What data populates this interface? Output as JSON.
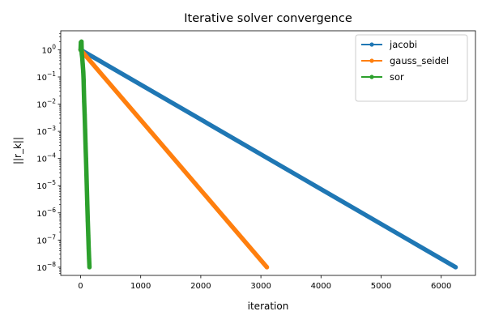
{
  "chart_data": {
    "type": "line",
    "title": "Iterative solver convergence",
    "xlabel": "iteration",
    "ylabel": "||r_k||",
    "yscale": "log",
    "xlim": [
      -330,
      6570
    ],
    "ylim": [
      5e-09,
      5.0
    ],
    "xticks": [
      0,
      1000,
      2000,
      3000,
      4000,
      5000,
      6000
    ],
    "yticks": [
      {
        "value": 1.0,
        "base": "10",
        "exp": "0"
      },
      {
        "value": 0.1,
        "base": "10",
        "exp": "−1"
      },
      {
        "value": 0.01,
        "base": "10",
        "exp": "−2"
      },
      {
        "value": 0.001,
        "base": "10",
        "exp": "−3"
      },
      {
        "value": 0.0001,
        "base": "10",
        "exp": "−4"
      },
      {
        "value": 1e-05,
        "base": "10",
        "exp": "−5"
      },
      {
        "value": 1e-06,
        "base": "10",
        "exp": "−6"
      },
      {
        "value": 1e-07,
        "base": "10",
        "exp": "−7"
      },
      {
        "value": 1e-08,
        "base": "10",
        "exp": "−8"
      }
    ],
    "grid": false,
    "legend_position": "top-right",
    "series": [
      {
        "name": "jacobi",
        "color": "#1f77b4",
        "points": [
          [
            0,
            1.0
          ],
          [
            6240,
            1e-08
          ]
        ]
      },
      {
        "name": "gauss_seidel",
        "color": "#ff7f0e",
        "points": [
          [
            0,
            1.0
          ],
          [
            3100,
            1e-08
          ]
        ]
      },
      {
        "name": "sor",
        "color": "#2ca02c",
        "points": [
          [
            0,
            1.0
          ],
          [
            5,
            1.9
          ],
          [
            10,
            0.9
          ],
          [
            15,
            2.0
          ],
          [
            20,
            0.7
          ],
          [
            28,
            0.5
          ],
          [
            35,
            0.3
          ],
          [
            45,
            0.15
          ],
          [
            50,
            0.08
          ],
          [
            55,
            0.03
          ],
          [
            60,
            0.012
          ],
          [
            68,
            0.004
          ],
          [
            75,
            0.0012
          ],
          [
            82,
            0.00035
          ],
          [
            90,
            0.0001
          ],
          [
            98,
            2.5e-05
          ],
          [
            105,
            7e-06
          ],
          [
            112,
            2e-06
          ],
          [
            120,
            5e-07
          ],
          [
            128,
            1.5e-07
          ],
          [
            135,
            5e-08
          ],
          [
            142,
            2e-08
          ],
          [
            148,
            1e-08
          ]
        ]
      }
    ]
  }
}
